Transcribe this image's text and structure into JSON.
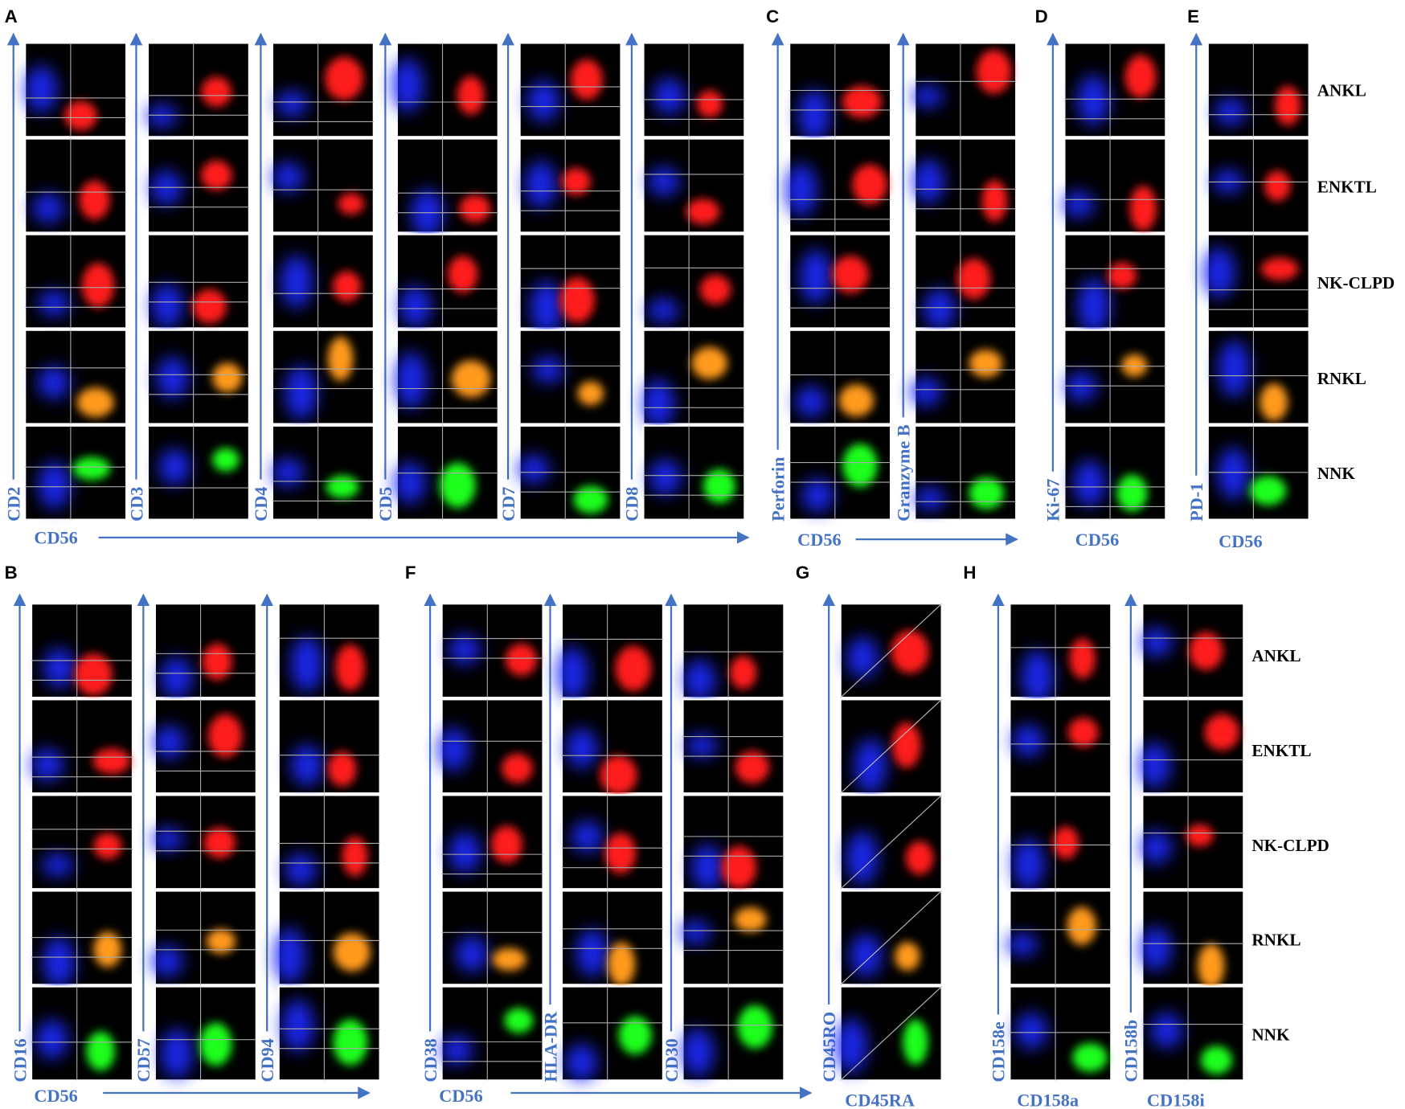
{
  "panels": [
    {
      "letter": "A",
      "y_labels": [
        "CD2",
        "CD3",
        "CD4",
        "CD5",
        "CD7",
        "CD8"
      ],
      "x_label": "CD56"
    },
    {
      "letter": "C",
      "y_labels": [
        "Perforin",
        "Granzyme B"
      ],
      "x_label": "CD56"
    },
    {
      "letter": "D",
      "y_labels": [
        "Ki-67"
      ],
      "x_label": "CD56"
    },
    {
      "letter": "E",
      "y_labels": [
        "PD-1"
      ],
      "x_label": "CD56"
    },
    {
      "letter": "B",
      "y_labels": [
        "CD16",
        "CD57",
        "CD94"
      ],
      "x_label": "CD56"
    },
    {
      "letter": "F",
      "y_labels": [
        "CD38",
        "HLA-DR",
        "CD30"
      ],
      "x_label": "CD56"
    },
    {
      "letter": "G",
      "y_labels": [
        "CD45RO"
      ],
      "x_label": "CD45RA"
    },
    {
      "letter": "H",
      "y_labels": [
        "CD158e",
        "CD158b"
      ],
      "x_labels": [
        "CD158a",
        "CD158i"
      ]
    }
  ],
  "row_labels_top": [
    "ANKL",
    "ENKTL",
    "NK-CLPD",
    "RNKL",
    "NNK"
  ],
  "row_labels_bottom": [
    "ANKL",
    "ENKTL",
    "NK-CLPD",
    "RNKL",
    "NNK"
  ]
}
